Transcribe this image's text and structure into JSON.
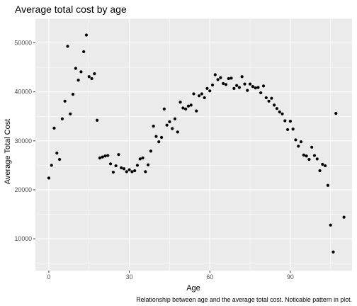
{
  "chart_data": {
    "type": "scatter",
    "title": "Average total cost by age",
    "xlabel": "Age",
    "ylabel": "Average Total Cost",
    "caption": "Relationship between age and the average total cost. Noticable pattern in plot.",
    "xlim": [
      -5,
      113
    ],
    "ylim": [
      3500,
      55000
    ],
    "x_ticks": [
      0,
      30,
      60,
      90
    ],
    "y_ticks": [
      10000,
      20000,
      30000,
      40000,
      50000
    ],
    "x_tick_labels": [
      "0",
      "30",
      "60",
      "90"
    ],
    "y_tick_labels": [
      "10000",
      "20000",
      "30000",
      "40000",
      "50000"
    ],
    "grid": true,
    "colors": {
      "panel": "#ebebeb",
      "grid_major": "#ffffff",
      "point": "#000000"
    },
    "points": [
      {
        "x": 0,
        "y": 22400
      },
      {
        "x": 1,
        "y": 25000
      },
      {
        "x": 2,
        "y": 32600
      },
      {
        "x": 3,
        "y": 27500
      },
      {
        "x": 4,
        "y": 26200
      },
      {
        "x": 5,
        "y": 34500
      },
      {
        "x": 6,
        "y": 38100
      },
      {
        "x": 7,
        "y": 49300
      },
      {
        "x": 8,
        "y": 35500
      },
      {
        "x": 9,
        "y": 39500
      },
      {
        "x": 10,
        "y": 44800
      },
      {
        "x": 11,
        "y": 42400
      },
      {
        "x": 12,
        "y": 44100
      },
      {
        "x": 13,
        "y": 48200
      },
      {
        "x": 14,
        "y": 51600
      },
      {
        "x": 15,
        "y": 43100
      },
      {
        "x": 16,
        "y": 42700
      },
      {
        "x": 17,
        "y": 43700
      },
      {
        "x": 18,
        "y": 34200
      },
      {
        "x": 19,
        "y": 26500
      },
      {
        "x": 20,
        "y": 26700
      },
      {
        "x": 21,
        "y": 26900
      },
      {
        "x": 22,
        "y": 27000
      },
      {
        "x": 23,
        "y": 25300
      },
      {
        "x": 24,
        "y": 23600
      },
      {
        "x": 25,
        "y": 24900
      },
      {
        "x": 26,
        "y": 27200
      },
      {
        "x": 27,
        "y": 24500
      },
      {
        "x": 28,
        "y": 24300
      },
      {
        "x": 29,
        "y": 23700
      },
      {
        "x": 30,
        "y": 24100
      },
      {
        "x": 31,
        "y": 23700
      },
      {
        "x": 32,
        "y": 23900
      },
      {
        "x": 33,
        "y": 25000
      },
      {
        "x": 34,
        "y": 26300
      },
      {
        "x": 35,
        "y": 26500
      },
      {
        "x": 36,
        "y": 23700
      },
      {
        "x": 37,
        "y": 25100
      },
      {
        "x": 38,
        "y": 27900
      },
      {
        "x": 39,
        "y": 33000
      },
      {
        "x": 40,
        "y": 30900
      },
      {
        "x": 41,
        "y": 29800
      },
      {
        "x": 42,
        "y": 30700
      },
      {
        "x": 43,
        "y": 36500
      },
      {
        "x": 44,
        "y": 33200
      },
      {
        "x": 45,
        "y": 33900
      },
      {
        "x": 46,
        "y": 32500
      },
      {
        "x": 47,
        "y": 34500
      },
      {
        "x": 48,
        "y": 31800
      },
      {
        "x": 49,
        "y": 37900
      },
      {
        "x": 50,
        "y": 36700
      },
      {
        "x": 51,
        "y": 36500
      },
      {
        "x": 52,
        "y": 37100
      },
      {
        "x": 53,
        "y": 37300
      },
      {
        "x": 54,
        "y": 39600
      },
      {
        "x": 55,
        "y": 36100
      },
      {
        "x": 56,
        "y": 39200
      },
      {
        "x": 57,
        "y": 39600
      },
      {
        "x": 58,
        "y": 38800
      },
      {
        "x": 59,
        "y": 40700
      },
      {
        "x": 60,
        "y": 40200
      },
      {
        "x": 61,
        "y": 41400
      },
      {
        "x": 62,
        "y": 43500
      },
      {
        "x": 63,
        "y": 42500
      },
      {
        "x": 64,
        "y": 42900
      },
      {
        "x": 65,
        "y": 41700
      },
      {
        "x": 66,
        "y": 41500
      },
      {
        "x": 67,
        "y": 42700
      },
      {
        "x": 68,
        "y": 42800
      },
      {
        "x": 69,
        "y": 40700
      },
      {
        "x": 70,
        "y": 41300
      },
      {
        "x": 71,
        "y": 40900
      },
      {
        "x": 72,
        "y": 43100
      },
      {
        "x": 73,
        "y": 41600
      },
      {
        "x": 74,
        "y": 40300
      },
      {
        "x": 75,
        "y": 41600
      },
      {
        "x": 76,
        "y": 41100
      },
      {
        "x": 77,
        "y": 40800
      },
      {
        "x": 78,
        "y": 40900
      },
      {
        "x": 79,
        "y": 39800
      },
      {
        "x": 80,
        "y": 41200
      },
      {
        "x": 81,
        "y": 38800
      },
      {
        "x": 82,
        "y": 38100
      },
      {
        "x": 83,
        "y": 38700
      },
      {
        "x": 84,
        "y": 37300
      },
      {
        "x": 85,
        "y": 36600
      },
      {
        "x": 86,
        "y": 35900
      },
      {
        "x": 87,
        "y": 35500
      },
      {
        "x": 88,
        "y": 34100
      },
      {
        "x": 89,
        "y": 32300
      },
      {
        "x": 90,
        "y": 34000
      },
      {
        "x": 91,
        "y": 32400
      },
      {
        "x": 92,
        "y": 30200
      },
      {
        "x": 93,
        "y": 28900
      },
      {
        "x": 94,
        "y": 29800
      },
      {
        "x": 95,
        "y": 27100
      },
      {
        "x": 96,
        "y": 26900
      },
      {
        "x": 97,
        "y": 26200
      },
      {
        "x": 98,
        "y": 28700
      },
      {
        "x": 99,
        "y": 27000
      },
      {
        "x": 100,
        "y": 26300
      },
      {
        "x": 101,
        "y": 23900
      },
      {
        "x": 102,
        "y": 25200
      },
      {
        "x": 103,
        "y": 24900
      },
      {
        "x": 104,
        "y": 20900
      },
      {
        "x": 105,
        "y": 12800
      },
      {
        "x": 106,
        "y": 7300
      },
      {
        "x": 107,
        "y": 35600
      },
      {
        "x": 110,
        "y": 14400
      }
    ]
  }
}
